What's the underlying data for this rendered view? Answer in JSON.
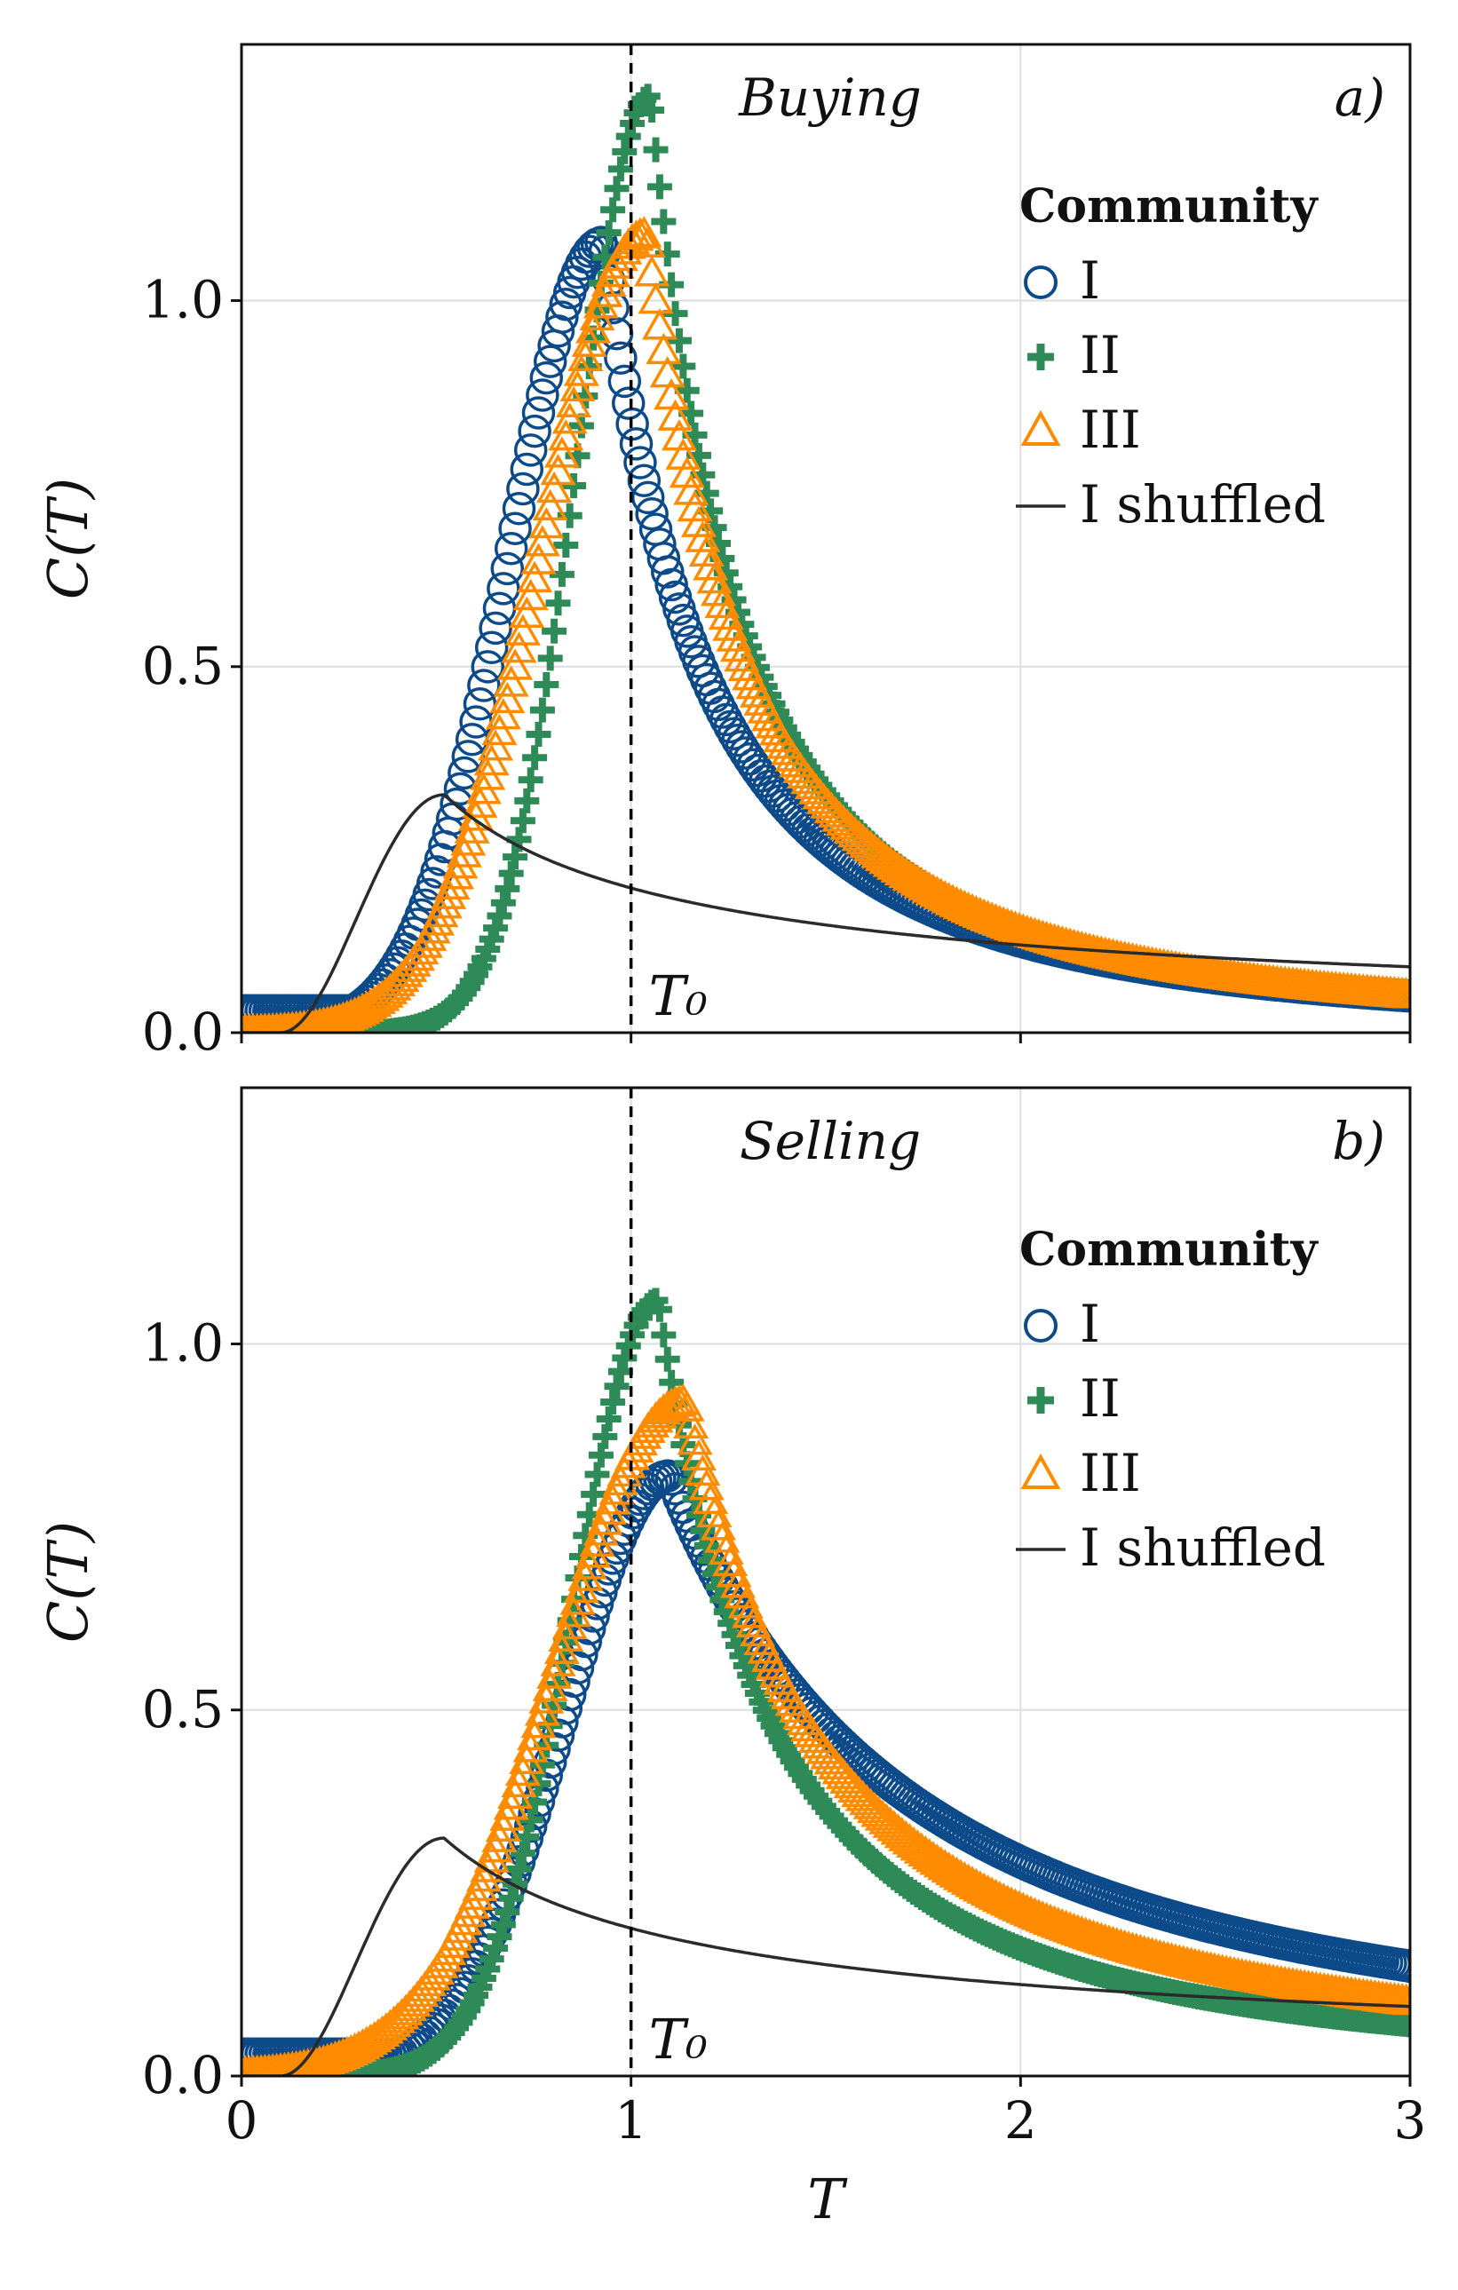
{
  "colors": {
    "community_I": "#0d4a8a",
    "community_II": "#2e8b57",
    "community_III": "#ff8c00",
    "shuffled": "#2b2b2b",
    "grid": "#dddddd",
    "reference_line": "#000000"
  },
  "chart_data": [
    {
      "id": "a",
      "type": "scatter",
      "panel_label": "a)",
      "annotation": "Buying",
      "xlabel": "T",
      "ylabel": "C(T)",
      "xlim": [
        0,
        3
      ],
      "ylim": [
        0,
        1.35
      ],
      "xticks": [
        0,
        1,
        2,
        3
      ],
      "xtick_labels": [
        "0",
        "1",
        "2",
        "3"
      ],
      "yticks": [
        0,
        0.5,
        1.0
      ],
      "ytick_labels": [
        "0.0",
        "0.5",
        "1.0"
      ],
      "grid": true,
      "reference_line": {
        "x": 1,
        "label": "T₀",
        "style": "dashed"
      },
      "legend": {
        "title": "Community",
        "position": "top-right",
        "entries": [
          {
            "label": "I",
            "marker": "circle",
            "series": "I"
          },
          {
            "label": "II",
            "marker": "plus",
            "series": "II"
          },
          {
            "label": "III",
            "marker": "triangle",
            "series": "III"
          },
          {
            "label": "I shuffled",
            "marker": "line",
            "series": "I shuffled"
          }
        ]
      },
      "series": [
        {
          "name": "I",
          "marker": "circle",
          "x_range": [
            0,
            3
          ],
          "n_points": 300,
          "baseline": 0.03,
          "peak_x": 0.93,
          "peak_y": 1.08,
          "left_width": 0.24,
          "right_decay": 0.48,
          "tail_at_3": 0.05
        },
        {
          "name": "II",
          "marker": "plus",
          "x_range": [
            0,
            3
          ],
          "n_points": 300,
          "baseline": 0.0,
          "peak_x": 1.05,
          "peak_y": 1.28,
          "left_width": 0.19,
          "right_decay": 0.42,
          "tail_at_3": 0.05
        },
        {
          "name": "III",
          "marker": "triangle",
          "x_range": [
            0,
            3
          ],
          "n_points": 300,
          "baseline": 0.0,
          "peak_x": 1.04,
          "peak_y": 1.09,
          "left_width": 0.27,
          "right_decay": 0.52,
          "tail_at_3": 0.05
        },
        {
          "name": "I shuffled",
          "marker": "line",
          "x_range": [
            0,
            3
          ],
          "rise_start": 0.1,
          "peak_x": 0.52,
          "peak_y": 0.325,
          "tail_at_3": 0.09
        }
      ]
    },
    {
      "id": "b",
      "type": "scatter",
      "panel_label": "b)",
      "annotation": "Selling",
      "xlabel": "T",
      "ylabel": "C(T)",
      "xlim": [
        0,
        3
      ],
      "ylim": [
        0,
        1.35
      ],
      "xticks": [
        0,
        1,
        2,
        3
      ],
      "xtick_labels": [
        "0",
        "1",
        "2",
        "3"
      ],
      "yticks": [
        0,
        0.5,
        1.0
      ],
      "ytick_labels": [
        "0.0",
        "0.5",
        "1.0"
      ],
      "grid": true,
      "reference_line": {
        "x": 1,
        "label": "T₀",
        "style": "dashed"
      },
      "legend": {
        "title": "Community",
        "position": "top-right",
        "entries": [
          {
            "label": "I",
            "marker": "circle",
            "series": "I"
          },
          {
            "label": "II",
            "marker": "plus",
            "series": "II"
          },
          {
            "label": "III",
            "marker": "triangle",
            "series": "III"
          },
          {
            "label": "I shuffled",
            "marker": "line",
            "series": "I shuffled"
          }
        ]
      },
      "series": [
        {
          "name": "I",
          "marker": "circle",
          "x_range": [
            0,
            3
          ],
          "n_points": 300,
          "baseline": 0.03,
          "peak_x": 1.1,
          "peak_y": 0.82,
          "left_width": 0.27,
          "right_decay": 0.95,
          "tail_at_3": 0.15
        },
        {
          "name": "II",
          "marker": "plus",
          "x_range": [
            0,
            3
          ],
          "n_points": 300,
          "baseline": 0.0,
          "peak_x": 1.07,
          "peak_y": 1.06,
          "left_width": 0.22,
          "right_decay": 0.5,
          "tail_at_3": 0.07
        },
        {
          "name": "III",
          "marker": "triangle",
          "x_range": [
            0,
            3
          ],
          "n_points": 300,
          "baseline": 0.0,
          "peak_x": 1.14,
          "peak_y": 0.92,
          "left_width": 0.33,
          "right_decay": 0.6,
          "tail_at_3": 0.1
        },
        {
          "name": "I shuffled",
          "marker": "line",
          "x_range": [
            0,
            3
          ],
          "rise_start": 0.1,
          "peak_x": 0.52,
          "peak_y": 0.325,
          "tail_at_3": 0.095
        }
      ]
    }
  ]
}
